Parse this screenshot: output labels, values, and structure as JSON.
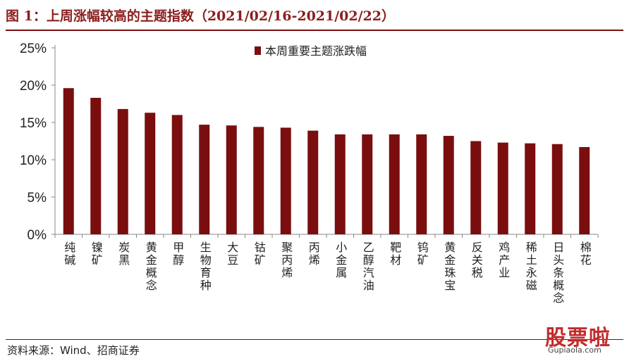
{
  "title": "图 1：上周涨幅较高的主题指数（2021/02/16-2021/02/22）",
  "source": "资料来源：Wind、招商证券",
  "watermark": {
    "main": "股票啦",
    "sub": "Gupiaola.com"
  },
  "colors": {
    "bar": "#7a0e0e",
    "title": "#8b1e1e",
    "axis": "#888888"
  },
  "chart_data": {
    "type": "bar",
    "legend": {
      "label": "本周重要主题涨跌幅",
      "placement": "top-center"
    },
    "categories": [
      "纯碱",
      "镍矿",
      "炭黑",
      "黄金概念",
      "甲醇",
      "生物育种",
      "大豆",
      "钴矿",
      "聚丙烯",
      "丙烯",
      "小金属",
      "乙醇汽油",
      "靶材",
      "钨矿",
      "黄金珠宝",
      "反关税",
      "鸡产业",
      "稀土永磁",
      "日头条概念",
      "棉花"
    ],
    "series": [
      {
        "name": "本周重要主题涨跌幅",
        "values": [
          19.6,
          18.3,
          16.8,
          16.3,
          16.0,
          14.7,
          14.6,
          14.4,
          14.3,
          13.9,
          13.4,
          13.4,
          13.4,
          13.4,
          13.2,
          12.5,
          12.3,
          12.2,
          12.1,
          11.7
        ]
      }
    ],
    "ylim": [
      0,
      25
    ],
    "yticks": [
      0,
      5,
      10,
      15,
      20,
      25
    ],
    "ytick_labels": [
      "0%",
      "5%",
      "10%",
      "15%",
      "20%",
      "25%"
    ],
    "grid": false
  }
}
